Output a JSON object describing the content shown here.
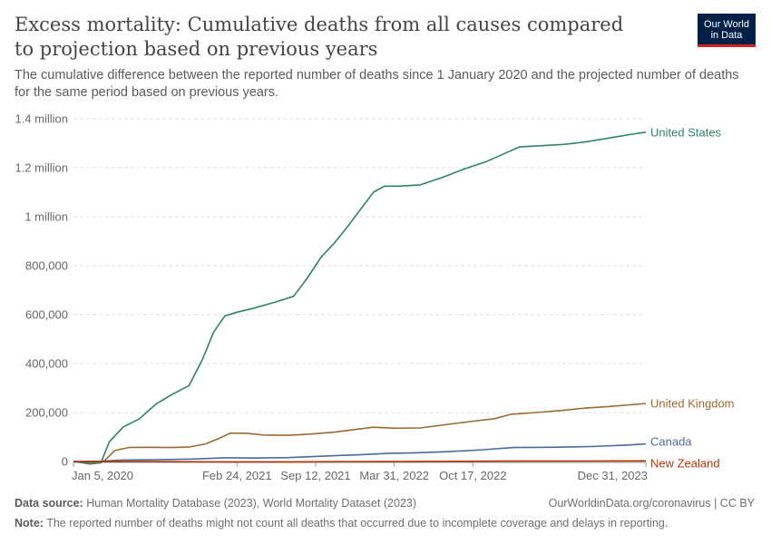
{
  "header": {
    "title": "Excess mortality: Cumulative deaths from all causes compared to projection based on previous years",
    "subtitle": "The cumulative difference between the reported number of deaths since 1 January 2020 and the projected number of deaths for the same period based on previous years.",
    "logo_line1": "Our World",
    "logo_line2": "in Data"
  },
  "footer": {
    "source_label": "Data source:",
    "source_text": "Human Mortality Database (2023), World Mortality Dataset (2023)",
    "url_text": "OurWorldinData.org/coronavirus | CC BY",
    "note_label": "Note:",
    "note_text": "The reported number of deaths might not count all deaths that occurred due to incomplete coverage and delays in reporting."
  },
  "colors": {
    "United States": "#2c8465",
    "United Kingdom": "#9a6a33",
    "Canada": "#4c6a9c",
    "New Zealand": "#b13507"
  },
  "chart_data": {
    "type": "line",
    "xlabel": "",
    "ylabel": "",
    "ylim": [
      0,
      1400000
    ],
    "yticks": [
      0,
      200000,
      400000,
      600000,
      800000,
      1000000,
      1200000,
      1400000
    ],
    "ytick_labels": [
      "0",
      "200,000",
      "400,000",
      "600,000",
      "800,000",
      "1 million",
      "1.2 million",
      "1.4 million"
    ],
    "xlim": [
      "2020-01-05",
      "2023-12-31"
    ],
    "xticks": [
      "2020-01-05",
      "2021-02-24",
      "2021-09-12",
      "2022-03-31",
      "2022-10-17",
      "2023-12-31"
    ],
    "xtick_labels": [
      "Jan 5, 2020",
      "Feb 24, 2021",
      "Sep 12, 2021",
      "Mar 31, 2022",
      "Oct 17, 2022",
      "Dec 31, 2023"
    ],
    "grid": true,
    "legend": "labels at line ends, right",
    "series": [
      {
        "name": "United States",
        "points": [
          [
            "2020-01-05",
            0
          ],
          [
            "2020-02-16",
            -10000
          ],
          [
            "2020-03-15",
            -5000
          ],
          [
            "2020-04-05",
            80000
          ],
          [
            "2020-05-10",
            140000
          ],
          [
            "2020-06-21",
            175000
          ],
          [
            "2020-08-02",
            235000
          ],
          [
            "2020-09-13",
            275000
          ],
          [
            "2020-10-25",
            310000
          ],
          [
            "2020-11-29",
            420000
          ],
          [
            "2020-12-27",
            530000
          ],
          [
            "2021-01-24",
            595000
          ],
          [
            "2021-02-24",
            610000
          ],
          [
            "2021-04-04",
            625000
          ],
          [
            "2021-05-30",
            650000
          ],
          [
            "2021-07-18",
            675000
          ],
          [
            "2021-08-22",
            750000
          ],
          [
            "2021-09-26",
            835000
          ],
          [
            "2021-10-31",
            895000
          ],
          [
            "2021-12-05",
            965000
          ],
          [
            "2022-01-09",
            1040000
          ],
          [
            "2022-02-06",
            1100000
          ],
          [
            "2022-03-06",
            1125000
          ],
          [
            "2022-04-10",
            1125000
          ],
          [
            "2022-06-05",
            1130000
          ],
          [
            "2022-07-31",
            1160000
          ],
          [
            "2022-09-25",
            1195000
          ],
          [
            "2022-11-20",
            1225000
          ],
          [
            "2023-01-08",
            1260000
          ],
          [
            "2023-02-12",
            1285000
          ],
          [
            "2023-04-09",
            1290000
          ],
          [
            "2023-06-04",
            1295000
          ],
          [
            "2023-07-30",
            1305000
          ],
          [
            "2023-09-24",
            1320000
          ],
          [
            "2023-11-19",
            1335000
          ],
          [
            "2023-12-31",
            1345000
          ]
        ]
      },
      {
        "name": "United Kingdom",
        "points": [
          [
            "2020-01-05",
            0
          ],
          [
            "2020-02-23",
            -4000
          ],
          [
            "2020-03-22",
            0
          ],
          [
            "2020-04-19",
            45000
          ],
          [
            "2020-05-24",
            57000
          ],
          [
            "2020-07-05",
            58000
          ],
          [
            "2020-09-06",
            57000
          ],
          [
            "2020-10-25",
            59000
          ],
          [
            "2020-12-06",
            72000
          ],
          [
            "2021-01-10",
            95000
          ],
          [
            "2021-02-07",
            116000
          ],
          [
            "2021-03-21",
            115000
          ],
          [
            "2021-05-02",
            108000
          ],
          [
            "2021-07-04",
            107000
          ],
          [
            "2021-08-29",
            112000
          ],
          [
            "2021-10-31",
            120000
          ],
          [
            "2021-12-26",
            132000
          ],
          [
            "2022-02-06",
            140000
          ],
          [
            "2022-04-03",
            136000
          ],
          [
            "2022-06-05",
            137000
          ],
          [
            "2022-08-07",
            150000
          ],
          [
            "2022-10-09",
            163000
          ],
          [
            "2022-12-11",
            175000
          ],
          [
            "2023-01-22",
            193000
          ],
          [
            "2023-03-26",
            200000
          ],
          [
            "2023-05-28",
            208000
          ],
          [
            "2023-07-30",
            218000
          ],
          [
            "2023-10-01",
            225000
          ],
          [
            "2023-12-31",
            237000
          ]
        ]
      },
      {
        "name": "Canada",
        "points": [
          [
            "2020-01-05",
            0
          ],
          [
            "2020-03-15",
            1000
          ],
          [
            "2020-05-10",
            6000
          ],
          [
            "2020-08-02",
            7000
          ],
          [
            "2020-11-01",
            10000
          ],
          [
            "2021-01-24",
            15000
          ],
          [
            "2021-04-04",
            14000
          ],
          [
            "2021-07-04",
            16000
          ],
          [
            "2021-10-03",
            22000
          ],
          [
            "2022-01-09",
            28000
          ],
          [
            "2022-03-13",
            33000
          ],
          [
            "2022-05-15",
            35000
          ],
          [
            "2022-08-14",
            40000
          ],
          [
            "2022-11-13",
            48000
          ],
          [
            "2023-01-29",
            57000
          ],
          [
            "2023-05-07",
            58000
          ],
          [
            "2023-08-13",
            61000
          ],
          [
            "2023-11-12",
            67000
          ],
          [
            "2023-12-31",
            72000
          ]
        ]
      },
      {
        "name": "New Zealand",
        "points": [
          [
            "2020-01-05",
            0
          ],
          [
            "2020-06-07",
            -500
          ],
          [
            "2021-01-03",
            -1500
          ],
          [
            "2021-07-04",
            -1500
          ],
          [
            "2022-01-02",
            -800
          ],
          [
            "2022-07-03",
            500
          ],
          [
            "2023-01-01",
            1500
          ],
          [
            "2023-07-02",
            2000
          ],
          [
            "2023-12-31",
            2500
          ]
        ]
      }
    ]
  }
}
